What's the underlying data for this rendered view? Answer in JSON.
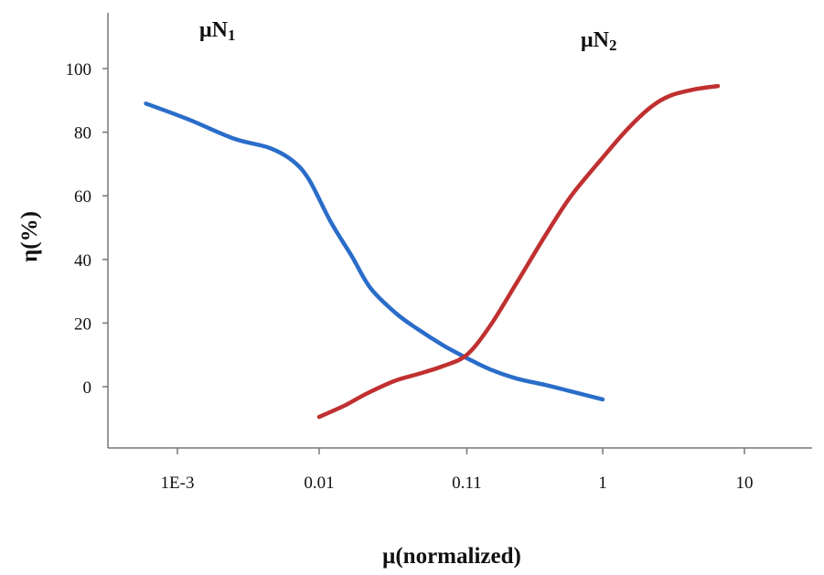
{
  "chart_data": {
    "type": "line",
    "xscale": "log",
    "xlabel": "μ(normalized)",
    "ylabel": "η(%)",
    "xlim": [
      0.00045,
      10
    ],
    "ylim": [
      -20,
      115
    ],
    "x_ticks": [
      {
        "value": 0.001,
        "label": "1E-3"
      },
      {
        "value": 0.01,
        "label": "0.01"
      },
      {
        "value": 0.11,
        "label": "0.11"
      },
      {
        "value": 1,
        "label": "1"
      },
      {
        "value": 10,
        "label": "10"
      }
    ],
    "y_ticks": [
      0,
      20,
      40,
      60,
      80,
      100
    ],
    "grid": false,
    "series": [
      {
        "name": "μN",
        "subscript": "1",
        "color": "#2a6dc9",
        "points": [
          [
            0.0006,
            89
          ],
          [
            0.0012,
            84
          ],
          [
            0.0025,
            78
          ],
          [
            0.0045,
            75
          ],
          [
            0.0065,
            71
          ],
          [
            0.0085,
            65
          ],
          [
            0.012,
            52
          ],
          [
            0.017,
            41
          ],
          [
            0.023,
            31
          ],
          [
            0.035,
            23
          ],
          [
            0.05,
            18
          ],
          [
            0.075,
            13
          ],
          [
            0.11,
            9
          ],
          [
            0.16,
            5.5
          ],
          [
            0.25,
            2.5
          ],
          [
            0.4,
            0.5
          ],
          [
            0.6,
            -1.5
          ],
          [
            1.0,
            -4
          ]
        ]
      },
      {
        "name": "μN",
        "subscript": "2",
        "color": "#c03030",
        "points": [
          [
            0.01,
            -9.5
          ],
          [
            0.015,
            -6
          ],
          [
            0.022,
            -2
          ],
          [
            0.035,
            2
          ],
          [
            0.05,
            4
          ],
          [
            0.075,
            6.5
          ],
          [
            0.11,
            10
          ],
          [
            0.16,
            19
          ],
          [
            0.25,
            33
          ],
          [
            0.4,
            48
          ],
          [
            0.6,
            60
          ],
          [
            1.0,
            72
          ],
          [
            1.5,
            81
          ],
          [
            2.2,
            88
          ],
          [
            3.0,
            91.5
          ],
          [
            4.5,
            93.5
          ],
          [
            6.5,
            94.5
          ]
        ]
      }
    ]
  }
}
